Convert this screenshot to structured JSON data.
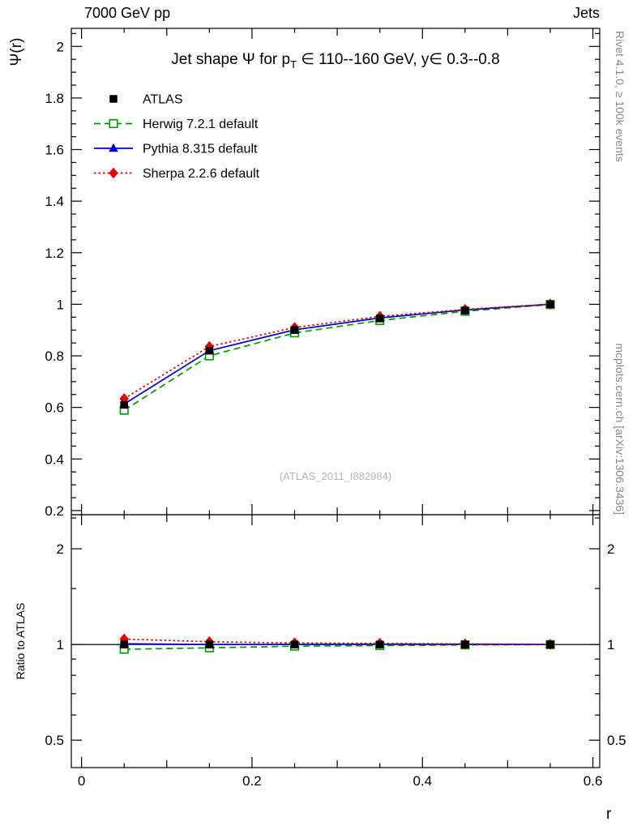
{
  "header": {
    "left": "7000 GeV pp",
    "right": "Jets"
  },
  "side_notes": {
    "top_right": "Rivet 4.1.0, ≥ 100k events",
    "bottom_right": "mcplots.cern.ch [arXiv:1306.3436]"
  },
  "watermark": "(ATLAS_2011_I882984)",
  "chart_data": {
    "type": "line",
    "title_parts": {
      "pre": "Jet shape Ψ for p",
      "sub": "T",
      "post": " ∈ 110--160 GeV, y∈ 0.3--0.8"
    },
    "xlabel": "r",
    "ylabel": "Ψ(r)",
    "ratio_ylabel": "Ratio to ATLAS",
    "x": [
      0.05,
      0.15,
      0.25,
      0.35,
      0.45,
      0.55
    ],
    "series": [
      {
        "name": "ATLAS",
        "marker": "square-filled",
        "color": "#000000",
        "line": "none",
        "values": [
          0.61,
          0.82,
          0.9,
          0.945,
          0.976,
          1.0
        ],
        "ratio": [
          1.0,
          1.0,
          1.0,
          1.0,
          1.0,
          1.0
        ]
      },
      {
        "name": "Herwig 7.2.1 default",
        "marker": "square-open",
        "color": "#009900",
        "line": "dashed",
        "values": [
          0.589,
          0.8,
          0.889,
          0.937,
          0.973,
          0.999
        ],
        "ratio": [
          0.966,
          0.976,
          0.988,
          0.992,
          0.997,
          0.999
        ]
      },
      {
        "name": "Pythia 8.315 default",
        "marker": "triangle-filled",
        "color": "#0000d0",
        "line": "solid",
        "values": [
          0.613,
          0.82,
          0.901,
          0.947,
          0.978,
          1.0
        ],
        "ratio": [
          1.005,
          1.0,
          1.001,
          1.002,
          1.002,
          1.0
        ]
      },
      {
        "name": "Sherpa 2.2.6 default",
        "marker": "diamond-filled",
        "color": "#e00000",
        "line": "dotted",
        "values": [
          0.634,
          0.836,
          0.91,
          0.953,
          0.98,
          1.001
        ],
        "ratio": [
          1.04,
          1.02,
          1.011,
          1.008,
          1.004,
          1.001
        ]
      }
    ],
    "main_axis": {
      "scale": "linear",
      "ylim": [
        0.184,
        2.07
      ],
      "yticks": [
        0.2,
        0.4,
        0.6,
        0.8,
        1,
        1.2,
        1.4,
        1.6,
        1.8,
        2
      ],
      "minor_step": 0.05
    },
    "ratio_axis": {
      "scale": "log",
      "ylim": [
        0.41,
        2.56
      ],
      "yticks": [
        0.5,
        1,
        2
      ],
      "minor": [
        0.4,
        0.6,
        0.7,
        0.8,
        0.9,
        1.5,
        2.5
      ]
    },
    "x_axis": {
      "xlim": [
        -0.012,
        0.608
      ],
      "xticks": [
        0,
        0.2,
        0.4,
        0.6
      ],
      "minor_step": 0.05
    },
    "legend_position": "top-left-inside",
    "grid": false
  }
}
